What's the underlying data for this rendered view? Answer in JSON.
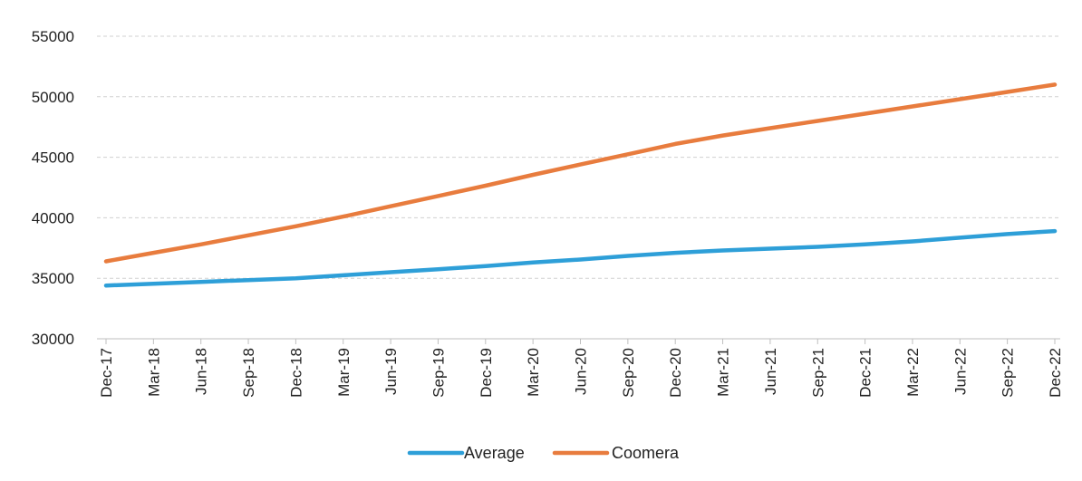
{
  "chart_data": {
    "type": "line",
    "title": "",
    "xlabel": "",
    "ylabel": "",
    "ylim": [
      30000,
      55000
    ],
    "yticks": [
      "30000",
      "35000",
      "40000",
      "45000",
      "50000",
      "55000"
    ],
    "grid": true,
    "legend_position": "bottom",
    "categories": [
      "Dec-17",
      "Mar-18",
      "Jun-18",
      "Sep-18",
      "Dec-18",
      "Mar-19",
      "Jun-19",
      "Sep-19",
      "Dec-19",
      "Mar-20",
      "Jun-20",
      "Sep-20",
      "Dec-20",
      "Mar-21",
      "Jun-21",
      "Sep-21",
      "Dec-21",
      "Mar-22",
      "Jun-22",
      "Sep-22",
      "Dec-22"
    ],
    "series": [
      {
        "name": "Average",
        "color": "#2e9fd8",
        "values": [
          34400,
          34550,
          34700,
          34850,
          35000,
          35250,
          35500,
          35750,
          36000,
          36300,
          36550,
          36850,
          37100,
          37300,
          37450,
          37600,
          37800,
          38050,
          38350,
          38650,
          38900
        ]
      },
      {
        "name": "Coomera",
        "color": "#e87c3e",
        "values": [
          36400,
          37100,
          37800,
          38550,
          39300,
          40100,
          40950,
          41800,
          42650,
          43550,
          44400,
          45250,
          46100,
          46800,
          47400,
          48000,
          48600,
          49200,
          49800,
          50400,
          51000
        ]
      }
    ]
  }
}
